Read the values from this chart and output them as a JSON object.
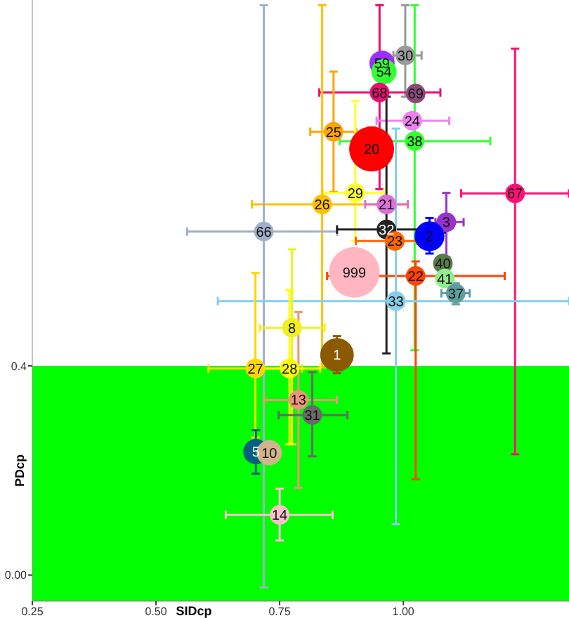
{
  "chart_data": {
    "type": "bubble",
    "xlabel": "SIDcp",
    "ylabel": "PDcp",
    "xlim": [
      0.25,
      1.335
    ],
    "ylim": [
      -0.05,
      1.1
    ],
    "xticks": [
      0.25,
      {
        "value": 0.5,
        "label": "0.50"
      },
      0.75,
      {
        "value": 1,
        "label": "1.00"
      }
    ],
    "yticks": [
      {
        "value": 0,
        "label": "0.00"
      },
      0.4
    ],
    "bands": [
      {
        "axis": "y",
        "from": -0.05,
        "to": 0.4,
        "color": "#00ff00"
      }
    ],
    "marker": "circle",
    "series": [
      {
        "name": "59",
        "color": "#9b30ff",
        "x": [
          0.957
        ],
        "values": [
          0.979
        ],
        "sizes": [
          0.25
        ]
      },
      {
        "name": "54",
        "color": "#33ff33",
        "x": [
          0.961
        ],
        "values": [
          0.963
        ],
        "sizes": [
          0.25
        ]
      },
      {
        "name": "30",
        "color": "#999999",
        "x": [
          1.004
        ],
        "values": [
          0.994
        ],
        "sizes": [
          0.15
        ],
        "errors": [
          [
            0.915,
            1.09
          ]
        ],
        "xerrors": [
          [
            0.98,
            1.037
          ]
        ]
      },
      {
        "name": "68",
        "color": "#e8106e",
        "x": [
          0.952
        ],
        "values": [
          0.923
        ],
        "sizes": [
          0.15
        ],
        "errors": [
          [
            0.738,
            1.09
          ]
        ],
        "xerrors": [
          [
            0.83,
            1.075
          ]
        ]
      },
      {
        "name": "69",
        "color": "#8b4a7a",
        "x": [
          1.025
        ],
        "values": [
          0.921
        ],
        "sizes": [
          0.15
        ]
      },
      {
        "name": "24",
        "color": "#ee82ee",
        "x": [
          1.018
        ],
        "values": [
          0.869
        ],
        "sizes": [
          0.15
        ],
        "xerrors": [
          [
            0.946,
            1.093
          ]
        ]
      },
      {
        "name": "25",
        "color": "#ffa500",
        "x": [
          0.859
        ],
        "values": [
          0.848
        ],
        "sizes": [
          0.15
        ],
        "errors": [
          [
            0.733,
            0.963
          ]
        ],
        "xerrors": [
          [
            0.812,
            0.905
          ]
        ]
      },
      {
        "name": "20",
        "color": "#ff0000",
        "x": [
          0.936
        ],
        "values": [
          0.815
        ],
        "sizes": [
          0.79
        ],
        "errors": [
          [
            0.776,
            0.856
          ]
        ]
      },
      {
        "name": "38",
        "color": "#33ff33",
        "x": [
          1.023
        ],
        "values": [
          0.83
        ],
        "sizes": [
          0.15
        ],
        "errors": [
          [
            0.43,
            1.09
          ]
        ],
        "xerrors": [
          [
            0.871,
            1.176
          ]
        ]
      },
      {
        "name": "67",
        "color": "#ff1177",
        "x": [
          1.226
        ],
        "values": [
          0.73
        ],
        "sizes": [
          0.15
        ],
        "errors": [
          [
            0.231,
            1.007
          ]
        ],
        "xerrors": [
          [
            1.117,
            1.335
          ]
        ]
      },
      {
        "name": "29",
        "color": "#ffff33",
        "x": [
          0.903
        ],
        "values": [
          0.731
        ],
        "sizes": [
          0.15
        ],
        "errors": [
          [
            0.639,
            0.907
          ]
        ],
        "xerrors": [
          [
            0.838,
            0.961
          ]
        ]
      },
      {
        "name": "26",
        "color": "#ffc000",
        "x": [
          0.836
        ],
        "values": [
          0.709
        ],
        "sizes": [
          0.15
        ],
        "errors": [
          [
            0.397,
            1.09
          ]
        ],
        "xerrors": [
          [
            0.694,
            1.009
          ]
        ]
      },
      {
        "name": "21",
        "color": "#da70d6",
        "x": [
          0.966
        ],
        "values": [
          0.709
        ],
        "sizes": [
          0.15
        ],
        "xerrors": [
          [
            0.923,
            1.009
          ]
        ]
      },
      {
        "name": "3",
        "color": "#9932cc",
        "x": [
          1.087
        ],
        "values": [
          0.675
        ],
        "sizes": [
          0.15
        ],
        "errors": [
          [
            0.608,
            0.731
          ]
        ],
        "xerrors": [
          [
            1.065,
            1.122
          ]
        ]
      },
      {
        "name": "66",
        "color": "#a0b0c8",
        "x": [
          0.718
        ],
        "values": [
          0.657
        ],
        "sizes": [
          0.15
        ],
        "errors": [
          [
            -0.024,
            1.09
          ]
        ],
        "xerrors": [
          [
            0.563,
            0.866
          ]
        ]
      },
      {
        "name": "32",
        "color": "#222222",
        "x": [
          0.966
        ],
        "values": [
          0.661
        ],
        "sizes": [
          0.15
        ],
        "errors": [
          [
            0.424,
            0.915
          ]
        ],
        "xerrors": [
          [
            0.866,
            1.084
          ]
        ]
      },
      {
        "name": "2",
        "color": "#0000ff",
        "x": [
          1.053
        ],
        "values": [
          0.648
        ],
        "sizes": [
          0.35
        ],
        "errors": [
          [
            0.615,
            0.683
          ]
        ]
      },
      {
        "name": "23",
        "color": "#ff6600",
        "x": [
          0.983
        ],
        "values": [
          0.639
        ],
        "sizes": [
          0.15
        ],
        "xerrors": [
          [
            0.904,
            1.028
          ]
        ]
      },
      {
        "name": "999",
        "color": "#ffb6c1",
        "x": [
          0.901
        ],
        "values": [
          0.579
        ],
        "sizes": [
          1
        ]
      },
      {
        "name": "40",
        "color": "#5a7a4a",
        "x": [
          1.08
        ],
        "values": [
          0.596
        ],
        "sizes": [
          0.15
        ]
      },
      {
        "name": "22",
        "color": "#ff4500",
        "x": [
          1.025
        ],
        "values": [
          0.572
        ],
        "sizes": [
          0.15
        ],
        "errors": [
          [
            0.183,
            0.6
          ]
        ],
        "xerrors": [
          [
            0.846,
            1.205
          ]
        ]
      },
      {
        "name": "41",
        "color": "#90ee90",
        "x": [
          1.084
        ],
        "values": [
          0.567
        ],
        "sizes": [
          0.15
        ]
      },
      {
        "name": "37",
        "color": "#5f9ea0",
        "x": [
          1.106
        ],
        "values": [
          0.539
        ],
        "sizes": [
          0.15
        ],
        "errors": [
          [
            0.518,
            0.558
          ]
        ],
        "xerrors": [
          [
            1.077,
            1.134
          ]
        ]
      },
      {
        "name": "33",
        "color": "#87ceeb",
        "x": [
          0.985
        ],
        "values": [
          0.524
        ],
        "sizes": [
          0.15
        ],
        "errors": [
          [
            0.097,
            0.854
          ]
        ],
        "xerrors": [
          [
            0.625,
            1.335
          ]
        ]
      },
      {
        "name": "8",
        "color": "#f0f020",
        "x": [
          0.775
        ],
        "values": [
          0.473
        ],
        "sizes": [
          0.15
        ],
        "errors": [
          [
            0.25,
            0.623
          ]
        ],
        "xerrors": [
          [
            0.71,
            0.841
          ]
        ]
      },
      {
        "name": "1",
        "color": "#8b5a00",
        "x": [
          0.866
        ],
        "values": [
          0.421
        ],
        "sizes": [
          0.44
        ],
        "errors": [
          [
            0.386,
            0.457
          ]
        ]
      },
      {
        "name": "27",
        "color": "#ffd700",
        "x": [
          0.701
        ],
        "values": [
          0.395
        ],
        "sizes": [
          0.15
        ],
        "errors": [
          [
            0.263,
            0.578
          ]
        ],
        "xerrors": [
          [
            0.606,
            0.795
          ]
        ]
      },
      {
        "name": "28",
        "color": "#ffff00",
        "x": [
          0.77
        ],
        "values": [
          0.395
        ],
        "sizes": [
          0.15
        ],
        "errors": [
          [
            0.25,
            0.545
          ]
        ],
        "xerrors": [
          [
            0.701,
            0.832
          ]
        ]
      },
      {
        "name": "13",
        "color": "#e9967a",
        "x": [
          0.788
        ],
        "values": [
          0.335
        ],
        "sizes": [
          0.15
        ],
        "errors": [
          [
            0.167,
            0.503
          ]
        ],
        "xerrors": [
          [
            0.719,
            0.866
          ]
        ]
      },
      {
        "name": "31",
        "color": "#696969",
        "x": [
          0.816
        ],
        "values": [
          0.306
        ],
        "sizes": [
          0.15
        ],
        "errors": [
          [
            0.227,
            0.388
          ]
        ],
        "xerrors": [
          [
            0.748,
            0.887
          ]
        ]
      },
      {
        "name": "5",
        "color": "#006080",
        "x": [
          0.702
        ],
        "values": [
          0.236
        ],
        "sizes": [
          0.25
        ],
        "errors": [
          [
            0.194,
            0.277
          ]
        ]
      },
      {
        "name": "10",
        "color": "#d2b48c",
        "x": [
          0.729
        ],
        "values": [
          0.234
        ],
        "sizes": [
          0.25
        ]
      },
      {
        "name": "14",
        "color": "#ffc0cb",
        "x": [
          0.75
        ],
        "values": [
          0.115
        ],
        "sizes": [
          0.15
        ],
        "errors": [
          [
            0.066,
            0.165
          ]
        ],
        "xerrors": [
          [
            0.641,
            0.857
          ]
        ]
      }
    ]
  }
}
